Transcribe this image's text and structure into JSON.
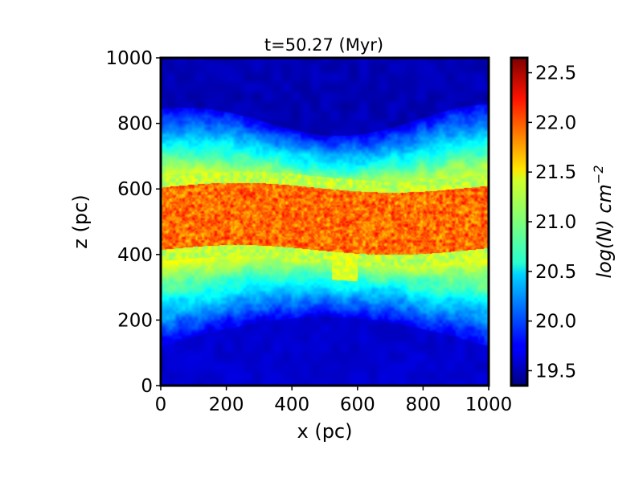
{
  "chart_data": {
    "type": "heatmap",
    "title": "t=50.27 (Myr)",
    "xlabel": "x (pc)",
    "ylabel": "z (pc)",
    "xlim": [
      0,
      1000
    ],
    "ylim": [
      0,
      1000
    ],
    "x_ticks": [
      "0",
      "200",
      "400",
      "600",
      "800",
      "1000"
    ],
    "y_ticks": [
      "0",
      "200",
      "400",
      "600",
      "800",
      "1000"
    ],
    "colormap": "jet",
    "colorbar": {
      "label_main": "log(N) cm",
      "label_exp": "−2",
      "range": [
        19.35,
        22.65
      ],
      "ticks": [
        "19.5",
        "20.0",
        "20.5",
        "21.0",
        "21.5",
        "22.0",
        "22.5"
      ]
    },
    "field": {
      "description_levels": [
        {
          "z_range": [
            0,
            150
          ],
          "log_N": 19.55
        },
        {
          "z_range": [
            200,
            300
          ],
          "log_N": 20.4
        },
        {
          "z_range": [
            300,
            420
          ],
          "log_N": 21.0
        },
        {
          "z_range": [
            420,
            620
          ],
          "log_N": 22.1
        },
        {
          "z_range": [
            620,
            800
          ],
          "log_N": 20.9
        },
        {
          "z_range": [
            820,
            1000
          ],
          "log_N": 19.45
        }
      ]
    }
  }
}
